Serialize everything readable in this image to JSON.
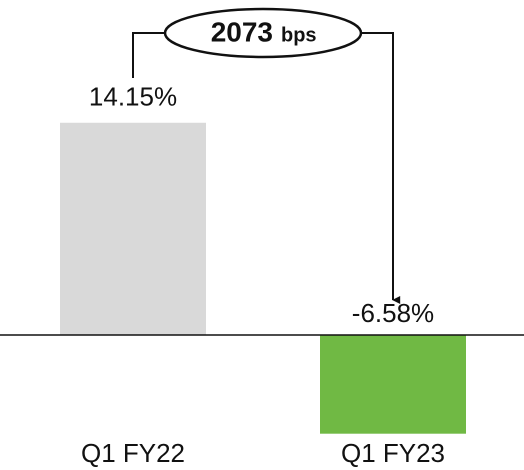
{
  "chart_data": {
    "type": "bar",
    "categories": [
      "Q1 FY22",
      "Q1 FY23"
    ],
    "values": [
      14.15,
      -6.58
    ],
    "value_labels": [
      "14.15%",
      "-6.58%"
    ],
    "colors": [
      "#d9d9d9",
      "#70b944"
    ],
    "annotation": {
      "number": "2073",
      "unit": "bps"
    },
    "ylim": [
      -7,
      15
    ]
  }
}
